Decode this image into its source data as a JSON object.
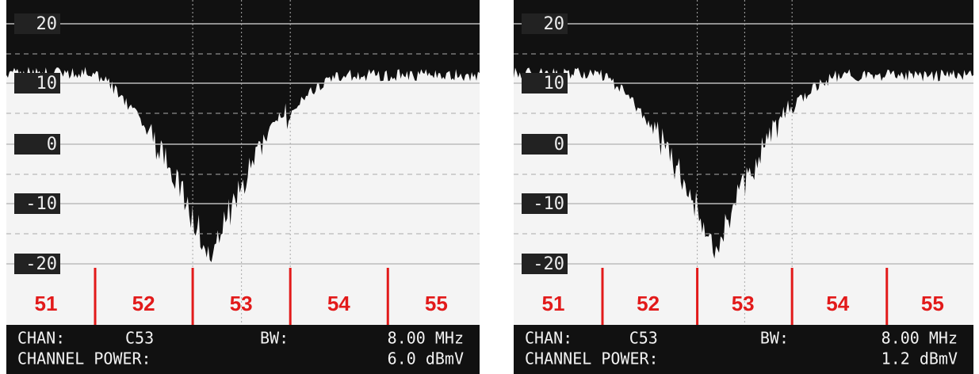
{
  "panels": [
    {
      "y_labels": [
        "20",
        "10",
        "0",
        "-10",
        "-20"
      ],
      "channels": [
        "51",
        "52",
        "53",
        "54",
        "55"
      ],
      "chan_label": "CHAN:",
      "chan": "C53",
      "bw_label": "BW:",
      "bw": "8.00 MHz",
      "power_label": "CHANNEL POWER:",
      "power": "6.0 dBmV"
    },
    {
      "y_labels": [
        "20",
        "10",
        "0",
        "-10",
        "-20"
      ],
      "channels": [
        "51",
        "52",
        "53",
        "54",
        "55"
      ],
      "chan_label": "CHAN:",
      "chan": "C53",
      "bw_label": "BW:",
      "bw": "8.00 MHz",
      "power_label": "CHANNEL POWER:",
      "power": "1.2 dBmV"
    }
  ]
}
